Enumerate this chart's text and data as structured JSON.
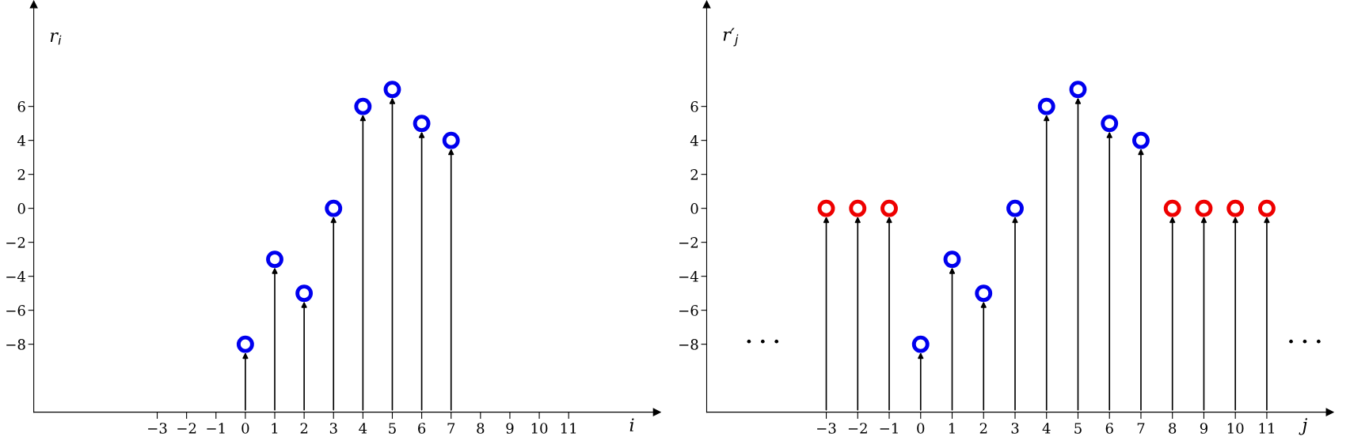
{
  "chart_data": [
    {
      "type": "lollipop",
      "ylabel": "r$_{i}$",
      "xlabel": "i",
      "marker": "circle",
      "grid": false,
      "series": [
        {
          "color": "#0000ee",
          "x": [
            0,
            1,
            2,
            3,
            4,
            5,
            6,
            7
          ],
          "values": [
            -8,
            -3,
            -5,
            0,
            6,
            7,
            5,
            4
          ]
        }
      ],
      "xlim": [
        -7.2,
        14
      ],
      "ylim": [
        -12,
        12
      ],
      "xticks": [
        -3,
        -2,
        -1,
        0,
        1,
        2,
        3,
        4,
        5,
        6,
        7,
        8,
        9,
        10,
        11
      ],
      "yticks": [
        -8,
        -6,
        -4,
        -2,
        0,
        2,
        4,
        6
      ]
    },
    {
      "type": "lollipop",
      "ylabel": "r′$_{j}$",
      "xlabel": "j",
      "marker": "circle",
      "grid": false,
      "series": [
        {
          "color": "#ee0000",
          "x": [
            -3,
            -2,
            -1,
            8,
            9,
            10,
            11
          ],
          "values": [
            0,
            0,
            0,
            0,
            0,
            0,
            0
          ]
        },
        {
          "color": "#0000ee",
          "x": [
            0,
            1,
            2,
            3,
            4,
            5,
            6,
            7
          ],
          "values": [
            -8,
            -3,
            -5,
            0,
            6,
            7,
            5,
            4
          ]
        }
      ],
      "annotations": [
        "· · ·",
        "· · ·"
      ],
      "xlim": [
        -6.8,
        13
      ],
      "ylim": [
        -12,
        12
      ],
      "xticks": [
        -3,
        -2,
        -1,
        0,
        1,
        2,
        3,
        4,
        5,
        6,
        7,
        8,
        9,
        10,
        11
      ],
      "yticks": [
        -8,
        -6,
        -4,
        -2,
        0,
        2,
        4,
        6
      ]
    }
  ]
}
